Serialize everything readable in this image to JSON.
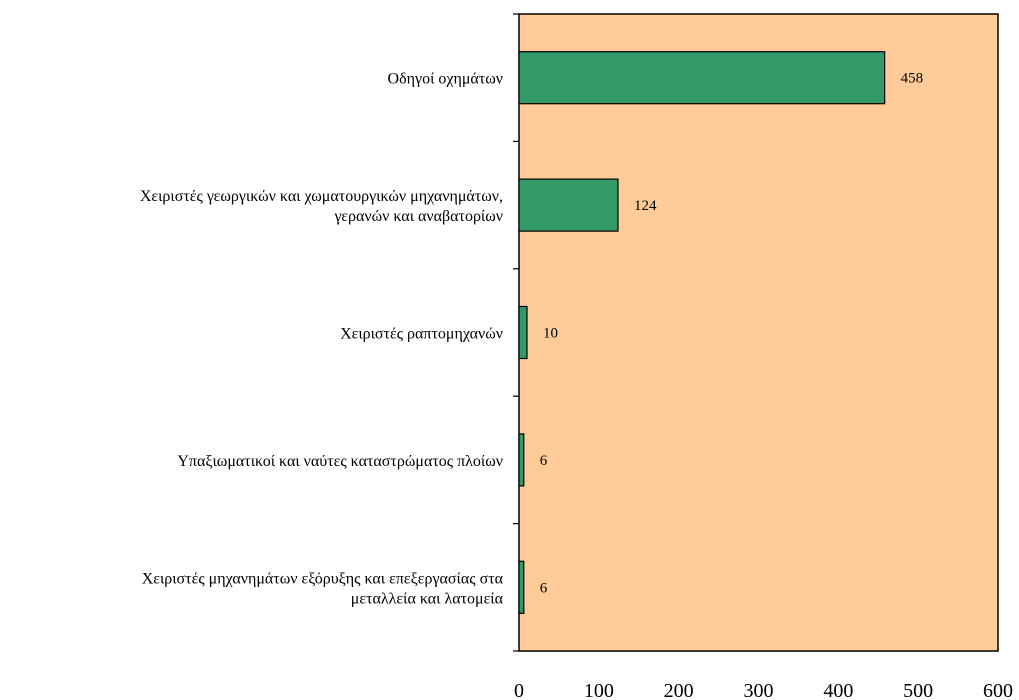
{
  "chart_data": {
    "type": "bar",
    "orientation": "horizontal",
    "categories": [
      [
        "Οδηγοί οχημάτων"
      ],
      [
        "Χειριστές γεωργικών και χωματουργικών μηχανημάτων,",
        "γερανών και αναβατορίων"
      ],
      [
        "Χειριστές ραπτομηχανών"
      ],
      [
        "Υπαξιωματικοί και ναύτες καταστρώματος πλοίων"
      ],
      [
        "Χειριστές μηχανημάτων εξόρυξης και επεξεργασίας στα",
        "μεταλλεία και λατομεία"
      ]
    ],
    "values": [
      458,
      124,
      10,
      6,
      6
    ],
    "xlim": [
      0,
      600
    ],
    "xticks": [
      0,
      100,
      200,
      300,
      400,
      500,
      600
    ],
    "grid": false,
    "colors": {
      "plot_background": "#FFCC99",
      "bar_fill": "#339966",
      "bar_stroke": "#000000"
    }
  }
}
